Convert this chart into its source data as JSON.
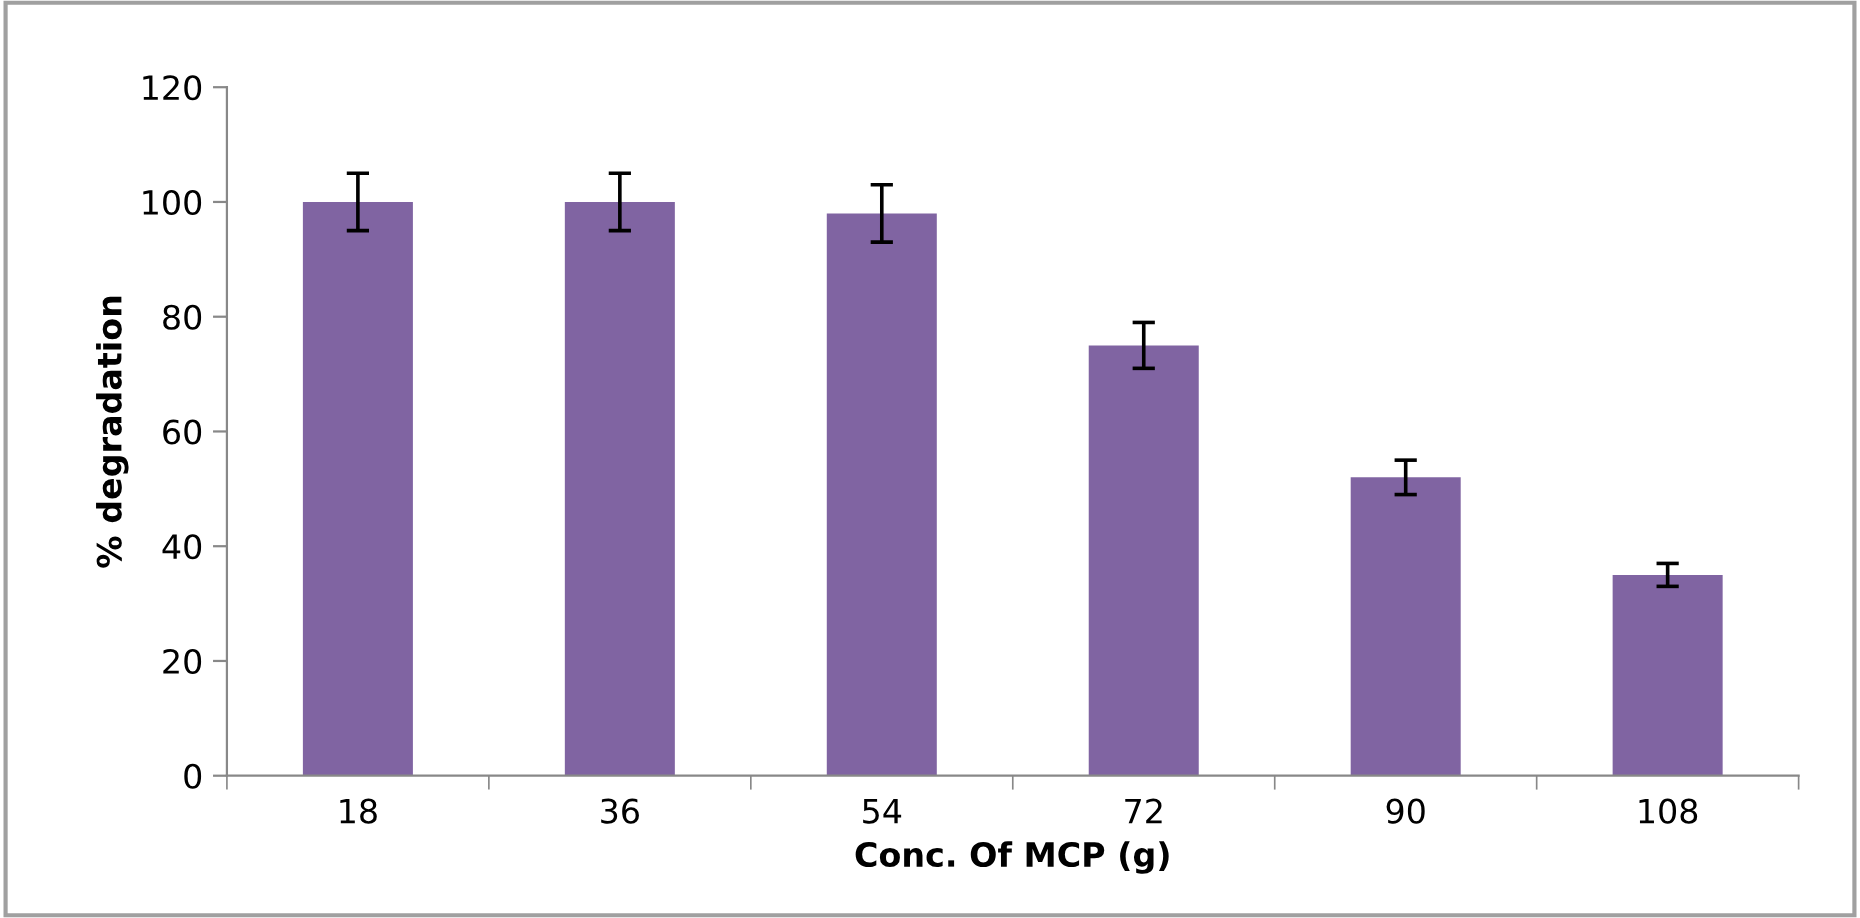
{
  "chart_data": {
    "type": "bar",
    "xlabel": "Conc. Of MCP (g)",
    "ylabel": "% degradation",
    "categories": [
      "18",
      "36",
      "54",
      "72",
      "90",
      "108"
    ],
    "values": [
      100,
      100,
      98,
      75,
      52,
      35
    ],
    "errors": [
      5,
      5,
      5,
      4,
      3,
      2
    ],
    "color": "#8064a2",
    "ylim": [
      0,
      120
    ],
    "yticks": [
      0,
      20,
      40,
      60,
      80,
      100,
      120
    ],
    "grid": false,
    "legend": false
  }
}
